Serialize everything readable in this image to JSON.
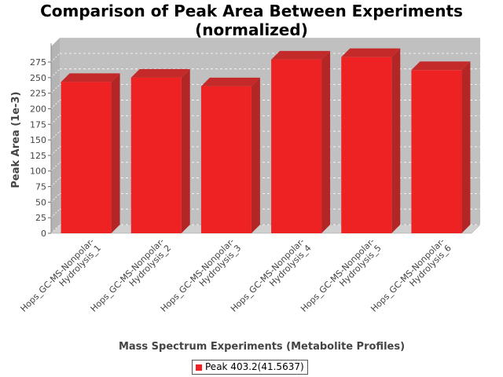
{
  "chart_data": {
    "type": "bar",
    "title": "Comparison of Peak Area Between Experiments\n(normalized)",
    "xlabel": "Mass Spectrum Experiments (Metabolite Profiles)",
    "ylabel": "Peak Area (1e-3)",
    "ylim": [
      0,
      300
    ],
    "yticks": [
      0,
      25,
      50,
      75,
      100,
      125,
      150,
      175,
      200,
      225,
      250,
      275
    ],
    "grid": true,
    "legend_position": "bottom",
    "categories": [
      [
        "Hops_GC-MS-Nonpolar-",
        "Hydrolysis_1"
      ],
      [
        "Hops_GC-MS-Nonpolar-",
        "Hydrolysis_2"
      ],
      [
        "Hops_GC-MS-Nonpolar-",
        "Hydrolysis_3"
      ],
      [
        "Hops_GC-MS-Nonpolar-",
        "Hydrolysis_4"
      ],
      [
        "Hops_GC-MS-Nonpolar-",
        "Hydrolysis_5"
      ],
      [
        "Hops_GC-MS-Nonpolar-",
        "Hydrolysis_6"
      ]
    ],
    "series": [
      {
        "name": "Peak 403.2(41.5637)",
        "color": "#ee2222",
        "values": [
          243,
          250,
          236,
          279,
          283,
          262
        ]
      }
    ]
  }
}
